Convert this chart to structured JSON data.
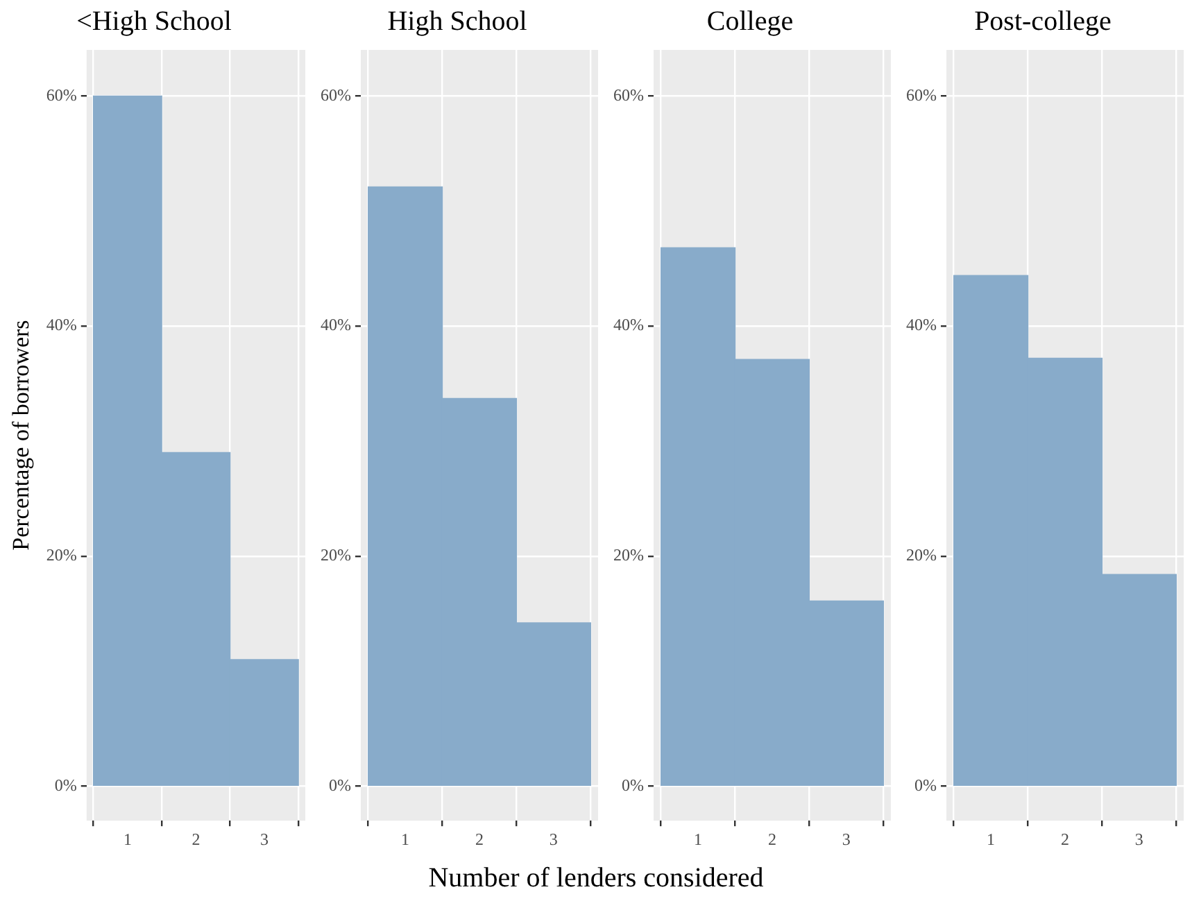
{
  "chart_data": [
    {
      "type": "histogram",
      "title": "<High School",
      "ylabel": "Percentage of borrowers",
      "xlabel": "Number of lenders considered",
      "bins": [
        0.5,
        1.5,
        2.5,
        3.5
      ],
      "values": [
        60,
        29,
        11
      ],
      "color": "#88abca",
      "xlim": [
        0.4,
        3.6
      ],
      "xticks": [
        1,
        2,
        3
      ],
      "ylim": [
        -3,
        64
      ],
      "yticks": [
        {
          "value": 0,
          "label": "0%"
        },
        {
          "value": 20,
          "label": "20%"
        },
        {
          "value": 40,
          "label": "40%"
        },
        {
          "value": 60,
          "label": "60%"
        }
      ],
      "grid": true
    },
    {
      "type": "histogram",
      "title": "High School",
      "bins": [
        0.5,
        1.5,
        2.5,
        3.5
      ],
      "values": [
        52.1,
        33.7,
        14.2
      ],
      "color": "#88abca",
      "xlim": [
        0.4,
        3.6
      ],
      "xticks": [
        1,
        2,
        3
      ],
      "ylim": [
        -3,
        64
      ],
      "yticks": [
        {
          "value": 0,
          "label": "0%"
        },
        {
          "value": 20,
          "label": "20%"
        },
        {
          "value": 40,
          "label": "40%"
        },
        {
          "value": 60,
          "label": "60%"
        }
      ],
      "grid": true
    },
    {
      "type": "histogram",
      "title": "College",
      "bins": [
        0.5,
        1.5,
        2.5,
        3.5
      ],
      "values": [
        46.8,
        37.1,
        16.1
      ],
      "color": "#88abca",
      "xlim": [
        0.4,
        3.6
      ],
      "xticks": [
        1,
        2,
        3
      ],
      "ylim": [
        -3,
        64
      ],
      "yticks": [
        {
          "value": 0,
          "label": "0%"
        },
        {
          "value": 20,
          "label": "20%"
        },
        {
          "value": 40,
          "label": "40%"
        },
        {
          "value": 60,
          "label": "60%"
        }
      ],
      "grid": true
    },
    {
      "type": "histogram",
      "title": "Post-college",
      "bins": [
        0.5,
        1.5,
        2.5,
        3.5
      ],
      "values": [
        44.4,
        37.2,
        18.4
      ],
      "color": "#88abca",
      "xlim": [
        0.4,
        3.6
      ],
      "xticks": [
        1,
        2,
        3
      ],
      "ylim": [
        -3,
        64
      ],
      "yticks": [
        {
          "value": 0,
          "label": "0%"
        },
        {
          "value": 20,
          "label": "20%"
        },
        {
          "value": 40,
          "label": "40%"
        },
        {
          "value": 60,
          "label": "60%"
        }
      ],
      "grid": true
    }
  ]
}
